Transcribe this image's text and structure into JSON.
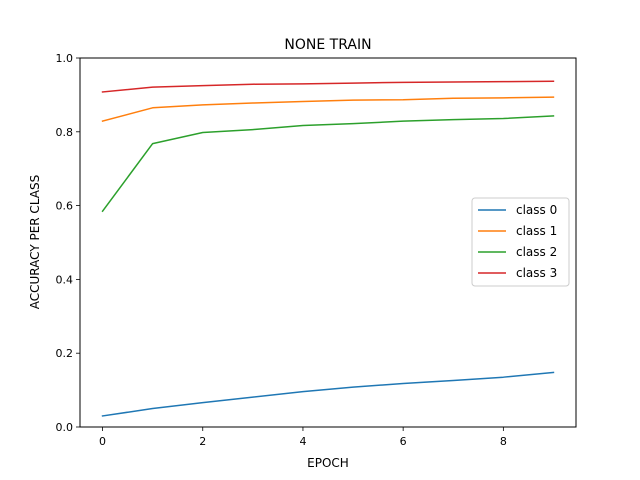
{
  "chart_data": {
    "type": "line",
    "title": "NONE TRAIN",
    "xlabel": "EPOCH",
    "ylabel": "ACCURACY PER CLASS",
    "xlim": [
      -0.45,
      9.45
    ],
    "ylim": [
      0.0,
      1.0
    ],
    "xticks": [
      0,
      2,
      4,
      6,
      8
    ],
    "yticks": [
      0.0,
      0.2,
      0.4,
      0.6,
      0.8,
      1.0
    ],
    "ytick_labels": [
      "0.0",
      "0.2",
      "0.4",
      "0.6",
      "0.8",
      "1.0"
    ],
    "x": [
      0,
      1,
      2,
      3,
      4,
      5,
      6,
      7,
      8,
      9
    ],
    "grid": false,
    "legend_position": "center-right",
    "series": [
      {
        "name": "class 0",
        "color": "#1f77b4",
        "values": [
          0.03,
          0.05,
          0.066,
          0.081,
          0.096,
          0.108,
          0.118,
          0.126,
          0.135,
          0.148
        ]
      },
      {
        "name": "class 1",
        "color": "#ff7f0e",
        "values": [
          0.829,
          0.865,
          0.873,
          0.878,
          0.882,
          0.886,
          0.887,
          0.891,
          0.892,
          0.894
        ]
      },
      {
        "name": "class 2",
        "color": "#2ca02c",
        "values": [
          0.585,
          0.768,
          0.798,
          0.806,
          0.817,
          0.822,
          0.829,
          0.833,
          0.836,
          0.843
        ]
      },
      {
        "name": "class 3",
        "color": "#d62728",
        "values": [
          0.908,
          0.921,
          0.925,
          0.929,
          0.93,
          0.932,
          0.934,
          0.935,
          0.936,
          0.937
        ]
      }
    ]
  }
}
